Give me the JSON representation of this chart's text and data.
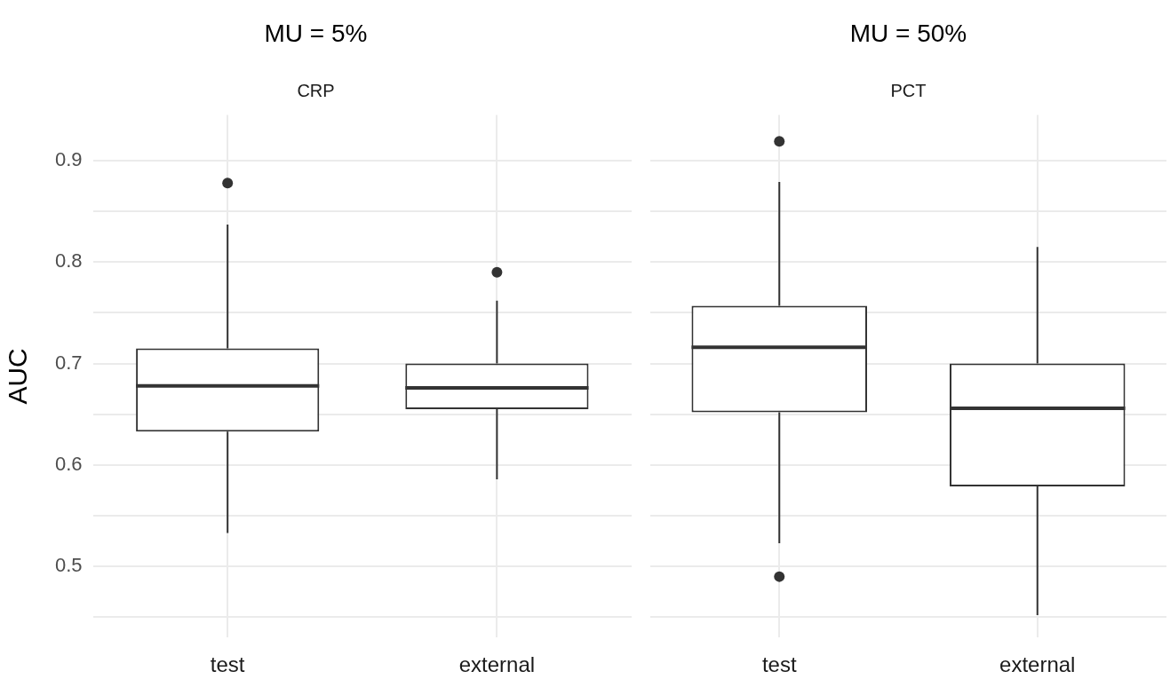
{
  "chart_data": [
    {
      "type": "box",
      "title": "MU = 5%",
      "subtitle": "CRP",
      "ylabel": "AUC",
      "categories": [
        "test",
        "external"
      ],
      "boxes": [
        {
          "low": 0.533,
          "q1": 0.633,
          "median": 0.678,
          "q3": 0.715,
          "high": 0.837,
          "outliers": [
            0.878
          ]
        },
        {
          "low": 0.586,
          "q1": 0.655,
          "median": 0.676,
          "q3": 0.7,
          "high": 0.762,
          "outliers": [
            0.79
          ]
        }
      ],
      "ylim": [
        0.43,
        0.945
      ],
      "yticks": [
        {
          "value": 0.45,
          "label": null
        },
        0.5,
        {
          "value": 0.55,
          "label": null
        },
        0.6,
        {
          "value": 0.65,
          "label": null
        },
        0.7,
        {
          "value": 0.75,
          "label": null
        },
        0.8,
        {
          "value": 0.85,
          "label": null
        },
        0.9
      ],
      "grid": true
    },
    {
      "type": "box",
      "title": "MU = 50%",
      "subtitle": "PCT",
      "categories": [
        "test",
        "external"
      ],
      "boxes": [
        {
          "low": 0.523,
          "q1": 0.652,
          "median": 0.716,
          "q3": 0.757,
          "high": 0.879,
          "outliers": [
            0.919,
            0.49
          ]
        },
        {
          "low": 0.452,
          "q1": 0.579,
          "median": 0.656,
          "q3": 0.7,
          "high": 0.815
        }
      ],
      "ylim": [
        0.43,
        0.945
      ],
      "yticks": [
        {
          "value": 0.45,
          "label": null
        },
        0.5,
        {
          "value": 0.55,
          "label": null
        },
        0.6,
        {
          "value": 0.65,
          "label": null
        },
        0.7,
        {
          "value": 0.75,
          "label": null
        },
        0.8,
        {
          "value": 0.85,
          "label": null
        },
        0.9
      ],
      "grid": true,
      "tick_labels": "x"
    }
  ]
}
